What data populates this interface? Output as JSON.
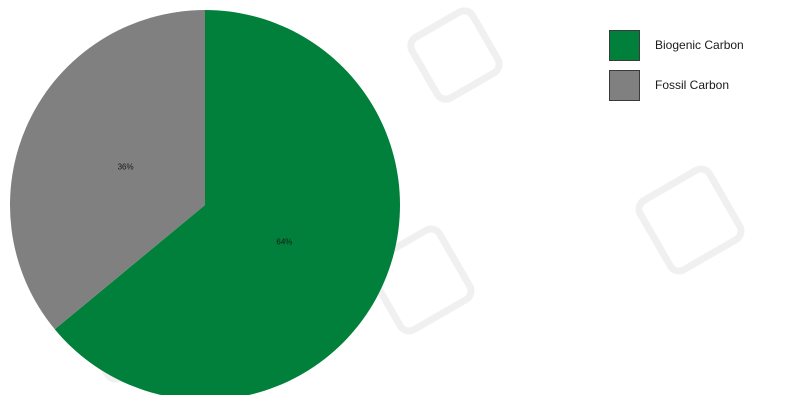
{
  "chart_data": {
    "type": "pie",
    "title": "",
    "slices": [
      {
        "name": "Biogenic Carbon",
        "value": 64,
        "label": "64%",
        "color": "#00803a"
      },
      {
        "name": "Fossil Carbon",
        "value": 36,
        "label": "36%",
        "color": "#808080"
      }
    ],
    "start_angle_deg": 0,
    "direction": "clockwise",
    "legend": {
      "placement": "right",
      "items": [
        {
          "label": "Biogenic Carbon",
          "color": "#00803a"
        },
        {
          "label": "Fossil Carbon",
          "color": "#808080"
        }
      ]
    }
  }
}
